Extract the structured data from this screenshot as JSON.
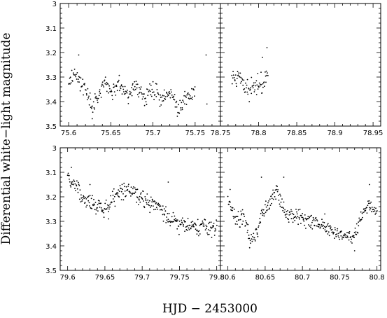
{
  "chart_data": {
    "type": "scatter",
    "xlabel": "HJD − 2453000",
    "ylabel": "Differential white−light magnitude",
    "ylim": [
      3.5,
      3.0
    ],
    "y_inverted": true,
    "y_ticks": [
      3,
      3.1,
      3.2,
      3.3,
      3.4,
      3.5
    ],
    "y_tick_labels": [
      "3",
      "3.1",
      "3.2",
      "3.3",
      "3.4",
      "3.5"
    ],
    "grid": false,
    "panels": [
      {
        "id": "top-left",
        "xlim": [
          75.59,
          75.78
        ],
        "x_ticks": [
          75.6,
          75.65,
          75.7,
          75.75
        ],
        "x_tick_labels": [
          "75.6",
          "75.65",
          "75.7",
          "75.75"
        ],
        "trend": [
          [
            75.6,
            3.31
          ],
          [
            75.61,
            3.29
          ],
          [
            75.62,
            3.36
          ],
          [
            75.63,
            3.42
          ],
          [
            75.64,
            3.33
          ],
          [
            75.65,
            3.36
          ],
          [
            75.66,
            3.33
          ],
          [
            75.67,
            3.37
          ],
          [
            75.68,
            3.33
          ],
          [
            75.69,
            3.4
          ],
          [
            75.7,
            3.35
          ],
          [
            75.71,
            3.39
          ],
          [
            75.72,
            3.36
          ],
          [
            75.73,
            3.43
          ],
          [
            75.74,
            3.39
          ],
          [
            75.75,
            3.36
          ]
        ],
        "scatter": 0.035,
        "outliers": [
          [
            75.612,
            3.21
          ],
          [
            75.763,
            3.21
          ],
          [
            75.764,
            3.41
          ],
          [
            75.628,
            3.47
          ]
        ]
      },
      {
        "id": "top-right",
        "xlim": [
          78.75,
          78.96
        ],
        "x_ticks": [
          78.75,
          78.8,
          78.85,
          78.9,
          78.95
        ],
        "x_tick_labels": [
          "78.75",
          "78.8",
          "78.85",
          "78.9",
          "78.95"
        ],
        "trend": [
          [
            78.765,
            3.31
          ],
          [
            78.775,
            3.3
          ],
          [
            78.785,
            3.35
          ],
          [
            78.795,
            3.34
          ],
          [
            78.805,
            3.33
          ],
          [
            78.812,
            3.29
          ]
        ],
        "scatter": 0.04,
        "outliers": [
          [
            78.811,
            3.18
          ],
          [
            78.805,
            3.22
          ]
        ]
      },
      {
        "id": "bottom-left",
        "xlim": [
          79.59,
          79.805
        ],
        "x_ticks": [
          79.6,
          79.65,
          79.7,
          79.75,
          79.8
        ],
        "x_tick_labels": [
          "79.6",
          "79.65",
          "79.7",
          "79.75",
          "79.8"
        ],
        "trend": [
          [
            79.6,
            3.13
          ],
          [
            79.61,
            3.15
          ],
          [
            79.62,
            3.2
          ],
          [
            79.63,
            3.23
          ],
          [
            79.64,
            3.24
          ],
          [
            79.65,
            3.25
          ],
          [
            79.66,
            3.21
          ],
          [
            79.67,
            3.18
          ],
          [
            79.68,
            3.17
          ],
          [
            79.69,
            3.18
          ],
          [
            79.7,
            3.2
          ],
          [
            79.71,
            3.22
          ],
          [
            79.72,
            3.23
          ],
          [
            79.73,
            3.26
          ],
          [
            79.74,
            3.3
          ],
          [
            79.75,
            3.31
          ],
          [
            79.76,
            3.32
          ],
          [
            79.77,
            3.33
          ],
          [
            79.78,
            3.32
          ],
          [
            79.79,
            3.33
          ],
          [
            79.8,
            3.32
          ]
        ],
        "scatter": 0.035,
        "outliers": [
          [
            79.605,
            3.08
          ],
          [
            79.63,
            3.15
          ],
          [
            79.735,
            3.14
          ],
          [
            79.655,
            3.29
          ]
        ]
      },
      {
        "id": "bottom-right",
        "xlim": [
          80.59,
          80.805
        ],
        "x_ticks": [
          80.6,
          80.65,
          80.7,
          80.75,
          80.8
        ],
        "x_tick_labels": [
          "80.6",
          "80.65",
          "80.7",
          "80.75",
          "80.8"
        ],
        "trend": [
          [
            80.6,
            3.21
          ],
          [
            80.605,
            3.25
          ],
          [
            80.61,
            3.28
          ],
          [
            80.615,
            3.3
          ],
          [
            80.62,
            3.27
          ],
          [
            80.625,
            3.32
          ],
          [
            80.63,
            3.38
          ],
          [
            80.635,
            3.37
          ],
          [
            80.64,
            3.33
          ],
          [
            80.645,
            3.28
          ],
          [
            80.65,
            3.25
          ],
          [
            80.655,
            3.23
          ],
          [
            80.66,
            3.2
          ],
          [
            80.665,
            3.18
          ],
          [
            80.67,
            3.21
          ],
          [
            80.675,
            3.25
          ],
          [
            80.68,
            3.27
          ],
          [
            80.69,
            3.28
          ],
          [
            80.7,
            3.29
          ],
          [
            80.71,
            3.3
          ],
          [
            80.72,
            3.31
          ],
          [
            80.73,
            3.33
          ],
          [
            80.74,
            3.34
          ],
          [
            80.75,
            3.35
          ],
          [
            80.76,
            3.36
          ],
          [
            80.765,
            3.37
          ],
          [
            80.77,
            3.36
          ],
          [
            80.775,
            3.32
          ],
          [
            80.78,
            3.28
          ],
          [
            80.785,
            3.24
          ],
          [
            80.79,
            3.23
          ],
          [
            80.795,
            3.26
          ],
          [
            80.8,
            3.27
          ]
        ],
        "scatter": 0.03,
        "outliers": [
          [
            80.603,
            3.17
          ],
          [
            80.645,
            3.12
          ],
          [
            80.675,
            3.12
          ],
          [
            80.73,
            3.27
          ],
          [
            80.77,
            3.42
          ],
          [
            80.79,
            3.15
          ]
        ]
      }
    ]
  }
}
